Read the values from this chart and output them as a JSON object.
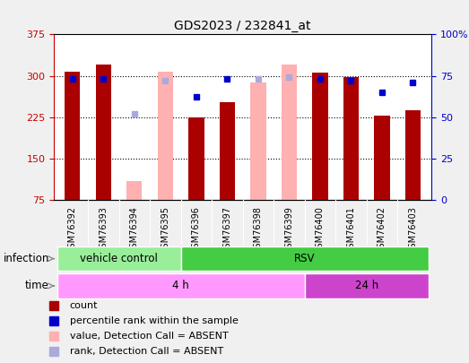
{
  "title": "GDS2023 / 232841_at",
  "samples": [
    "GSM76392",
    "GSM76393",
    "GSM76394",
    "GSM76395",
    "GSM76396",
    "GSM76397",
    "GSM76398",
    "GSM76399",
    "GSM76400",
    "GSM76401",
    "GSM76402",
    "GSM76403"
  ],
  "count_values": [
    307,
    320,
    null,
    null,
    225,
    252,
    null,
    null,
    305,
    298,
    228,
    237
  ],
  "rank_values": [
    73,
    73,
    null,
    null,
    62,
    73,
    null,
    null,
    73,
    72,
    65,
    71
  ],
  "absent_count_values": [
    null,
    null,
    108,
    308,
    null,
    null,
    288,
    320,
    null,
    null,
    null,
    null
  ],
  "absent_rank_values": [
    null,
    null,
    52,
    72,
    null,
    null,
    73,
    74,
    null,
    null,
    null,
    null
  ],
  "bar_color_present": "#AA0000",
  "bar_color_absent": "#FFB0B0",
  "sq_color_present": "#0000CC",
  "sq_color_absent": "#AAAADD",
  "ylim_left": [
    75,
    375
  ],
  "ylim_right": [
    0,
    100
  ],
  "yticks_left": [
    75,
    150,
    225,
    300,
    375
  ],
  "yticks_right": [
    0,
    25,
    50,
    75,
    100
  ],
  "infection_groups": [
    {
      "text": "vehicle control",
      "start": 0,
      "end": 4,
      "color": "#99EE99"
    },
    {
      "text": "RSV",
      "start": 4,
      "end": 12,
      "color": "#44CC44"
    }
  ],
  "time_groups": [
    {
      "text": "4 h",
      "start": 0,
      "end": 8,
      "color": "#FF99FF"
    },
    {
      "text": "24 h",
      "start": 8,
      "end": 12,
      "color": "#CC44CC"
    }
  ],
  "bar_width": 0.5,
  "background_color": "#F0F0F0",
  "plot_bg_color": "#FFFFFF",
  "gray_bg_color": "#CCCCCC",
  "left_tick_color": "#CC0000",
  "right_tick_color": "#0000CC",
  "legend_items": [
    {
      "label": "count",
      "color": "#AA0000"
    },
    {
      "label": "percentile rank within the sample",
      "color": "#0000CC"
    },
    {
      "label": "value, Detection Call = ABSENT",
      "color": "#FFB0B0"
    },
    {
      "label": "rank, Detection Call = ABSENT",
      "color": "#AAAADD"
    }
  ],
  "grid_lines": [
    150,
    225,
    300
  ]
}
